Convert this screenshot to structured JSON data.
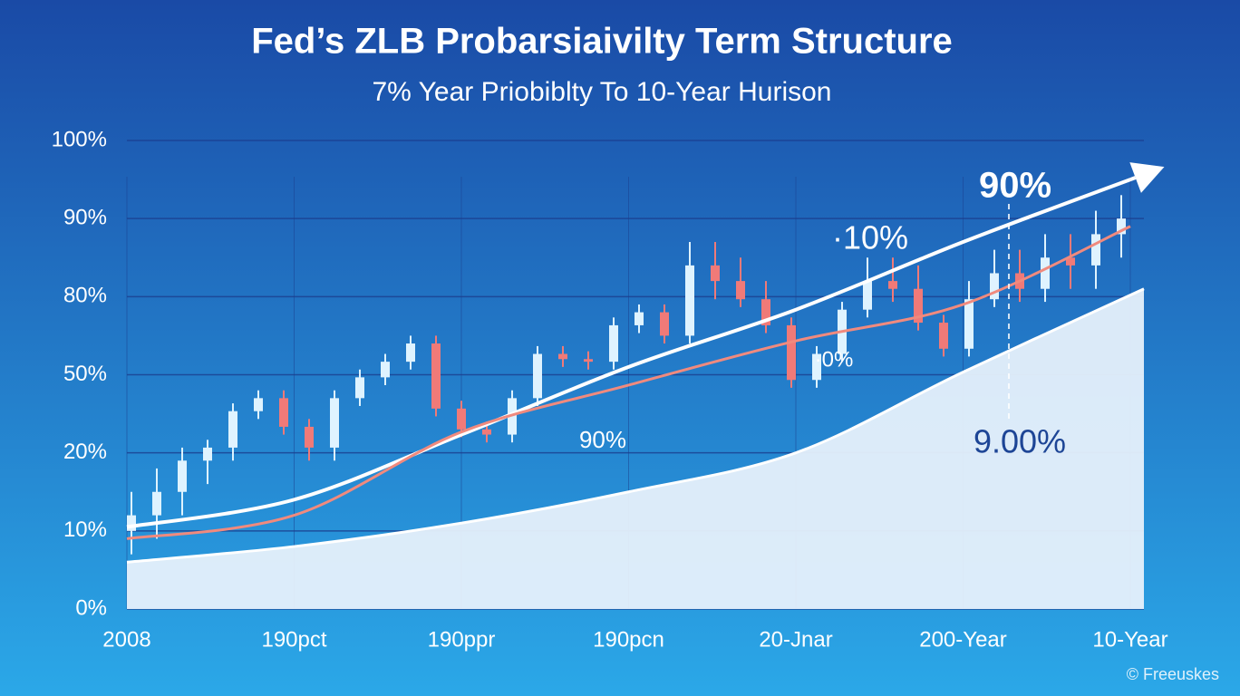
{
  "chart_data": {
    "type": "candlestick",
    "title": "Fed’s ZLB Probarsiaivilty Term Structure",
    "subtitle": "7% Year Priobiblty To 10-Year Hurison",
    "categories": [
      "2008",
      "190pct",
      "190ppr",
      "190pcn",
      "20-Jnar",
      "200-Year",
      "10-Year"
    ],
    "yticks": [
      {
        "value": 0,
        "label": "0%"
      },
      {
        "value": 10,
        "label": "10%"
      },
      {
        "value": 20,
        "label": "20%"
      },
      {
        "value": 50,
        "label": "50%"
      },
      {
        "value": 80,
        "label": "80%"
      },
      {
        "value": 90,
        "label": "90%"
      },
      {
        "value": 100,
        "label": "100%"
      }
    ],
    "ylim": [
      0,
      100
    ],
    "grid": true,
    "up_color": "#dff3ff",
    "down_color": "#f07a78",
    "open": [
      10,
      12,
      15,
      19,
      22,
      36,
      41,
      30,
      22,
      41,
      49,
      55,
      62,
      37,
      29,
      27,
      41,
      58,
      56,
      55,
      69,
      74,
      65,
      84,
      82,
      79,
      69,
      48,
      58,
      75,
      82,
      81,
      70,
      60,
      79,
      83,
      81,
      85,
      84,
      88
    ],
    "high": [
      15,
      18,
      22,
      25,
      39,
      44,
      44,
      33,
      44,
      52,
      58,
      65,
      65,
      40,
      32,
      44,
      61,
      61,
      59,
      72,
      77,
      77,
      87,
      87,
      85,
      82,
      72,
      61,
      78,
      85,
      85,
      84,
      73,
      82,
      86,
      86,
      88,
      88,
      91,
      93
    ],
    "low": [
      7,
      9,
      12,
      16,
      19,
      33,
      27,
      19,
      19,
      38,
      46,
      52,
      34,
      26,
      24,
      24,
      38,
      53,
      52,
      52,
      66,
      62,
      62,
      79,
      76,
      66,
      45,
      45,
      55,
      72,
      78,
      67,
      57,
      57,
      76,
      78,
      78,
      81,
      81,
      85
    ],
    "close": [
      12,
      15,
      19,
      22,
      36,
      41,
      30,
      22,
      41,
      49,
      55,
      62,
      37,
      29,
      27,
      41,
      58,
      56,
      55,
      69,
      74,
      65,
      84,
      82,
      79,
      69,
      48,
      58,
      75,
      82,
      81,
      70,
      60,
      79,
      83,
      81,
      85,
      84,
      88,
      90
    ],
    "series": [
      {
        "type": "area",
        "color": "#e6f0fb",
        "values": [
          6,
          8,
          11,
          15,
          20,
          51,
          81
        ]
      },
      {
        "type": "line",
        "color": "#ffffff",
        "values": [
          10.5,
          14,
          27,
          53,
          75,
          87,
          95
        ]
      },
      {
        "type": "line",
        "color": "#f08a7e",
        "values": [
          9,
          12,
          28,
          46,
          63,
          77,
          89
        ]
      }
    ],
    "annotations": [
      "90%",
      "·10%",
      "90%",
      "·0%",
      "9.00%"
    ],
    "footer": "© Freeuskes"
  }
}
